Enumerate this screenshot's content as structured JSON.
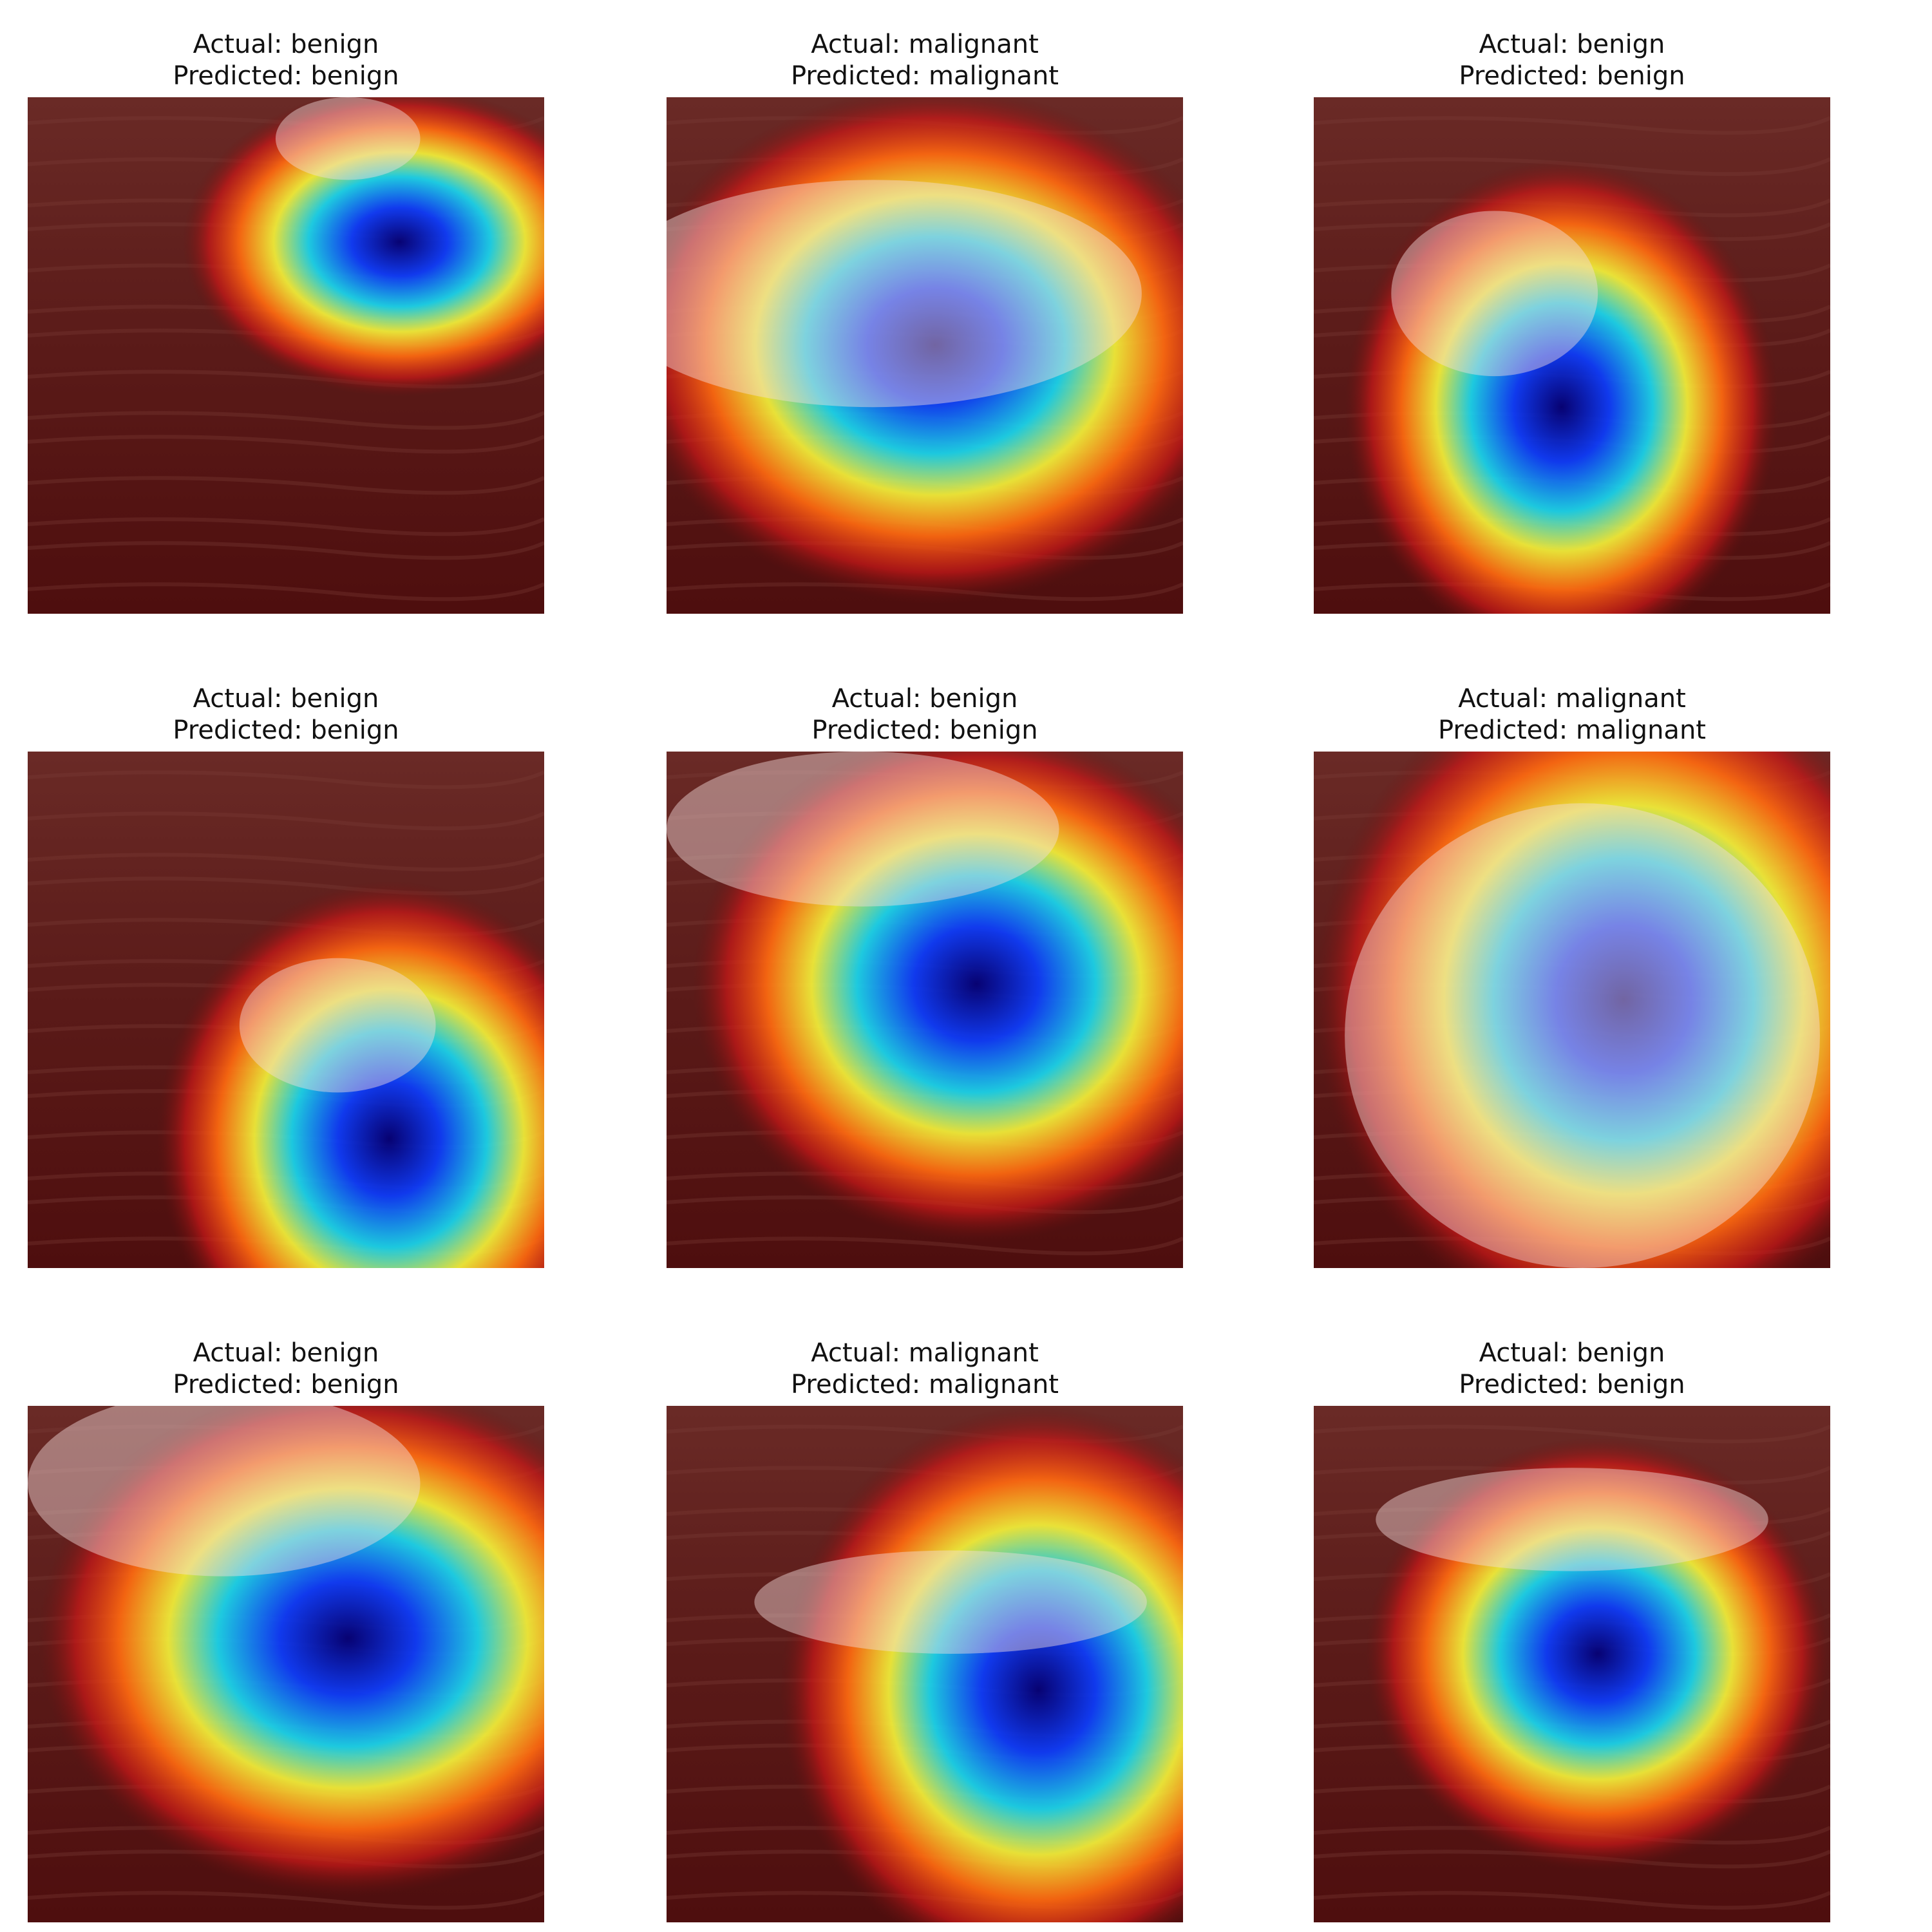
{
  "panels": [
    {
      "actual": "Actual: benign",
      "predicted": "Predicted: benign"
    },
    {
      "actual": "Actual: malignant",
      "predicted": "Predicted: malignant"
    },
    {
      "actual": "Actual: benign",
      "predicted": "Predicted: benign"
    },
    {
      "actual": "Actual: benign",
      "predicted": "Predicted: benign"
    },
    {
      "actual": "Actual: benign",
      "predicted": "Predicted: benign"
    },
    {
      "actual": "Actual: malignant",
      "predicted": "Predicted: malignant"
    },
    {
      "actual": "Actual: benign",
      "predicted": "Predicted: benign"
    },
    {
      "actual": "Actual: malignant",
      "predicted": "Predicted: malignant"
    },
    {
      "actual": "Actual: benign",
      "predicted": "Predicted: benign"
    }
  ]
}
